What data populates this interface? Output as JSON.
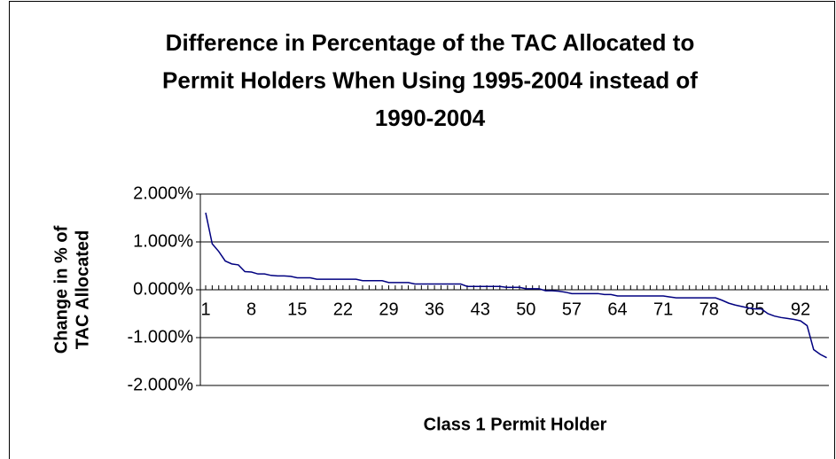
{
  "chart_data": {
    "type": "line",
    "title": [
      "Difference in Percentage of the TAC Allocated to",
      "Permit Holders When Using 1995-2004 instead of",
      "1990-2004"
    ],
    "x_label": "Class 1 Permit Holder",
    "y_label": [
      "Change in % of",
      "TAC Allocated"
    ],
    "categories": [
      1,
      null,
      null,
      null,
      null,
      null,
      null,
      8,
      null,
      null,
      null,
      null,
      null,
      null,
      15,
      null,
      null,
      null,
      null,
      null,
      null,
      22,
      null,
      null,
      null,
      null,
      null,
      null,
      29,
      null,
      null,
      null,
      null,
      null,
      null,
      36,
      null,
      null,
      null,
      null,
      null,
      null,
      43,
      null,
      null,
      null,
      null,
      null,
      null,
      50,
      null,
      null,
      null,
      null,
      null,
      null,
      57,
      null,
      null,
      null,
      null,
      null,
      null,
      64,
      null,
      null,
      null,
      null,
      null,
      null,
      71,
      null,
      null,
      null,
      null,
      null,
      null,
      78,
      null,
      null,
      null,
      null,
      null,
      null,
      85,
      null,
      null,
      null,
      null,
      null,
      null,
      92,
      null,
      null,
      null,
      null
    ],
    "series": [
      {
        "color": "#000080",
        "values": [
          1.61,
          0.96,
          0.8,
          0.6,
          0.54,
          0.52,
          0.38,
          0.37,
          0.33,
          0.33,
          0.3,
          0.29,
          0.29,
          0.28,
          0.25,
          0.25,
          0.25,
          0.22,
          0.22,
          0.22,
          0.22,
          0.22,
          0.22,
          0.22,
          0.19,
          0.19,
          0.19,
          0.19,
          0.15,
          0.15,
          0.15,
          0.15,
          0.12,
          0.12,
          0.12,
          0.12,
          0.12,
          0.12,
          0.12,
          0.12,
          0.07,
          0.07,
          0.07,
          0.07,
          0.07,
          0.07,
          0.05,
          0.05,
          0.05,
          0.02,
          0.02,
          0.02,
          -0.02,
          -0.02,
          -0.03,
          -0.05,
          -0.08,
          -0.08,
          -0.08,
          -0.08,
          -0.08,
          -0.1,
          -0.1,
          -0.13,
          -0.13,
          -0.13,
          -0.13,
          -0.13,
          -0.13,
          -0.13,
          -0.13,
          -0.15,
          -0.17,
          -0.17,
          -0.17,
          -0.17,
          -0.17,
          -0.17,
          -0.17,
          -0.22,
          -0.28,
          -0.32,
          -0.35,
          -0.38,
          -0.4,
          -0.4,
          -0.5,
          -0.55,
          -0.58,
          -0.6,
          -0.62,
          -0.65,
          -0.75,
          -1.25,
          -1.35,
          -1.42
        ]
      }
    ],
    "ylim": [
      -2,
      2
    ],
    "yticks": [
      {
        "value": -2,
        "label": "-2.000%"
      },
      {
        "value": -1,
        "label": "-1.000%"
      },
      {
        "value": 0,
        "label": "0.000%"
      },
      {
        "value": 1,
        "label": "1.000%"
      },
      {
        "value": 2,
        "label": "2.000%"
      }
    ],
    "grid": true
  }
}
